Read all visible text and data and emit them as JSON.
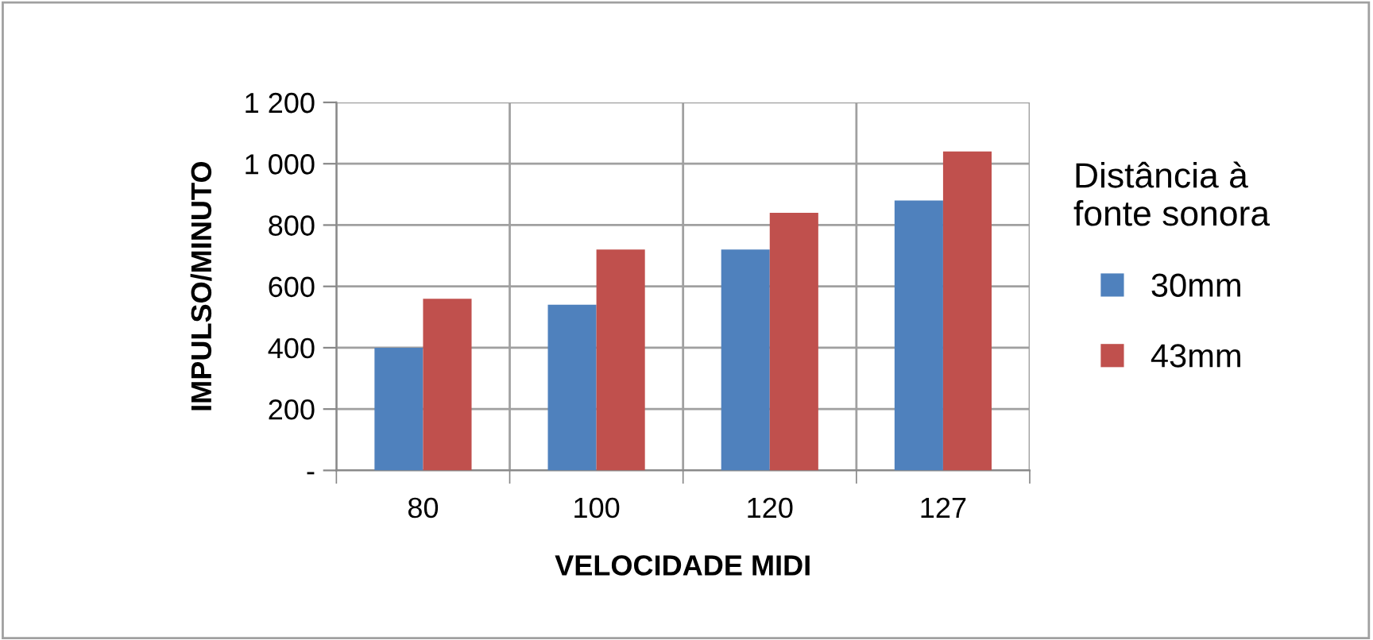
{
  "chart_data": {
    "type": "bar",
    "xlabel": "VELOCIDADE MIDI",
    "ylabel": "IMPULSO/MINUTO",
    "legend_title": "Distância à fonte sonora",
    "categories": [
      "80",
      "100",
      "120",
      "127"
    ],
    "series": [
      {
        "name": "30mm",
        "color": "#4f81bd",
        "values": [
          400,
          540,
          720,
          880
        ]
      },
      {
        "name": "43mm",
        "color": "#c0504d",
        "values": [
          560,
          720,
          840,
          1040
        ]
      }
    ],
    "ylim": [
      0,
      1200
    ],
    "yticks": [
      {
        "value": 0,
        "label": "-"
      },
      200,
      400,
      600,
      800,
      {
        "value": 1000,
        "label": "1 000"
      },
      {
        "value": 1200,
        "label": "1 200"
      }
    ],
    "grid": true,
    "legend": "right"
  }
}
